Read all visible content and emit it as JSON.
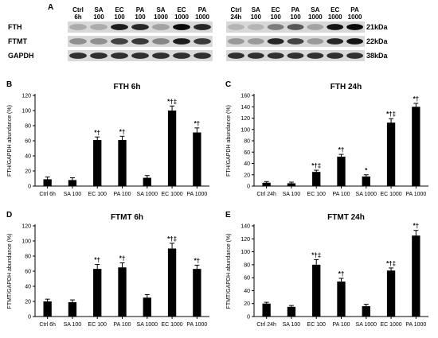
{
  "blot": {
    "panel_letter": "A",
    "rows": [
      "FTH",
      "FTMT",
      "GAPDH"
    ],
    "kda": [
      "21kDa",
      "22kDa",
      "38kDa"
    ],
    "lanes_left": [
      [
        "Ctrl",
        "6h"
      ],
      [
        "SA",
        "100"
      ],
      [
        "EC",
        "100"
      ],
      [
        "PA",
        "100"
      ],
      [
        "SA",
        "1000"
      ],
      [
        "EC",
        "1000"
      ],
      [
        "PA",
        "1000"
      ]
    ],
    "lanes_right": [
      [
        "Ctrl",
        "24h"
      ],
      [
        "SA",
        "100"
      ],
      [
        "EC",
        "100"
      ],
      [
        "PA",
        "100"
      ],
      [
        "SA",
        "1000"
      ],
      [
        "EC",
        "1000"
      ],
      [
        "PA",
        "1000"
      ]
    ],
    "intensity_left": [
      [
        0.15,
        0.15,
        0.9,
        0.85,
        0.2,
        1.0,
        0.85
      ],
      [
        0.3,
        0.3,
        0.7,
        0.75,
        0.35,
        0.9,
        0.75
      ],
      [
        0.8,
        0.8,
        0.8,
        0.8,
        0.8,
        0.8,
        0.8
      ]
    ],
    "intensity_right": [
      [
        0.1,
        0.1,
        0.4,
        0.6,
        0.2,
        0.95,
        1.0
      ],
      [
        0.25,
        0.25,
        0.85,
        0.7,
        0.25,
        0.85,
        0.95
      ],
      [
        0.8,
        0.8,
        0.8,
        0.8,
        0.8,
        0.8,
        0.8
      ]
    ]
  },
  "chart_data": [
    {
      "panel": "B",
      "type": "bar",
      "title": "FTH 6h",
      "ylabel": "FTH/GAPDH abundance (%)",
      "ylim": [
        0,
        120
      ],
      "yticks": [
        0,
        20,
        40,
        60,
        80,
        100,
        120
      ],
      "categories": [
        "Ctrl 6h",
        "SA 100",
        "EC 100",
        "PA 100",
        "SA 1000",
        "EC 1000",
        "PA 1000"
      ],
      "values": [
        9,
        8,
        61,
        61,
        11,
        100,
        71
      ],
      "errors": [
        3,
        3,
        4,
        5,
        3,
        6,
        6
      ],
      "annotations": [
        "",
        "",
        "*†",
        "*†",
        "",
        "*†‡",
        "*†"
      ],
      "bar_color": "#000000"
    },
    {
      "panel": "C",
      "type": "bar",
      "title": "FTH 24h",
      "ylabel": "FTH/GAPDH abundance (%)",
      "ylim": [
        0,
        160
      ],
      "yticks": [
        0,
        20,
        40,
        60,
        80,
        100,
        120,
        140,
        160
      ],
      "categories": [
        "Ctrl 24h",
        "SA 100",
        "EC 100",
        "PA 100",
        "SA 1000",
        "EC 1000",
        "PA 1000"
      ],
      "values": [
        6,
        5,
        25,
        52,
        17,
        112,
        140
      ],
      "errors": [
        2,
        2,
        3,
        4,
        3,
        7,
        6
      ],
      "annotations": [
        "",
        "",
        "*†‡",
        "*†",
        "*",
        "*†‡",
        "*†"
      ],
      "bar_color": "#000000"
    },
    {
      "panel": "D",
      "type": "bar",
      "title": "FTMT 6h",
      "ylabel": "FTMT/GAPDH abundance (%)",
      "ylim": [
        0,
        120
      ],
      "yticks": [
        0,
        20,
        40,
        60,
        80,
        100,
        120
      ],
      "categories": [
        "Ctrl 6h",
        "SA 100",
        "EC 100",
        "PA 100",
        "SA 1000",
        "EC 1000",
        "PA 1000"
      ],
      "values": [
        20,
        19,
        63,
        65,
        25,
        90,
        63
      ],
      "errors": [
        3,
        3,
        6,
        6,
        4,
        7,
        5
      ],
      "annotations": [
        "",
        "",
        "*†",
        "*†",
        "",
        "*†‡",
        "*†"
      ],
      "bar_color": "#000000"
    },
    {
      "panel": "E",
      "type": "bar",
      "title": "FTMT 24h",
      "ylabel": "FTMT/GAPDH abundance (%)",
      "ylim": [
        0,
        140
      ],
      "yticks": [
        0,
        20,
        40,
        60,
        80,
        100,
        120,
        140
      ],
      "categories": [
        "Ctrl 24h",
        "SA 100",
        "EC 100",
        "PA 100",
        "SA 1000",
        "EC 1000",
        "PA 1000"
      ],
      "values": [
        20,
        15,
        80,
        54,
        16,
        71,
        125
      ],
      "errors": [
        2,
        2,
        8,
        5,
        3,
        4,
        8
      ],
      "annotations": [
        "",
        "",
        "*†‡",
        "*†",
        "",
        "*†‡",
        "*†"
      ],
      "bar_color": "#000000"
    }
  ]
}
